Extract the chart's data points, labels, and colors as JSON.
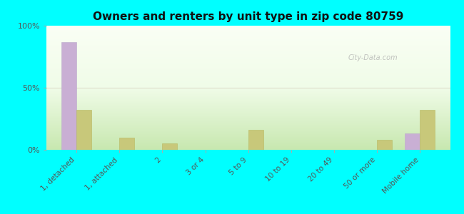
{
  "title": "Owners and renters by unit type in zip code 80759",
  "categories": [
    "1, detached",
    "1, attached",
    "2",
    "3 or 4",
    "5 to 9",
    "10 to 19",
    "20 to 49",
    "50 or more",
    "Mobile home"
  ],
  "owner_values": [
    87,
    0,
    0,
    0,
    0,
    0,
    0,
    0,
    13
  ],
  "renter_values": [
    32,
    10,
    5,
    0,
    16,
    0,
    0,
    8,
    32
  ],
  "owner_color": "#c9afd4",
  "renter_color": "#c8c87a",
  "bg_color": "#00ffff",
  "plot_bg_top": "#f5fff5",
  "plot_bg_bottom": "#d8eecc",
  "ylim": [
    0,
    100
  ],
  "yticks": [
    0,
    50,
    100
  ],
  "ytick_labels": [
    "0%",
    "50%",
    "100%"
  ],
  "bar_width": 0.35,
  "watermark": "City-Data.com"
}
